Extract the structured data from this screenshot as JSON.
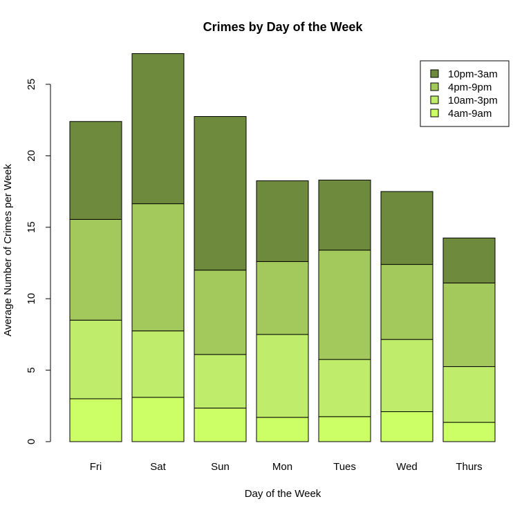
{
  "chart_data": {
    "type": "bar",
    "stacked": true,
    "title": "Crimes by Day of the Week",
    "xlabel": "Day of the Week",
    "ylabel": "Average Number of Crimes per Week",
    "ylim": [
      0,
      27.5
    ],
    "yticks": [
      0,
      5,
      10,
      15,
      20,
      25
    ],
    "categories": [
      "Fri",
      "Sat",
      "Sun",
      "Mon",
      "Tues",
      "Wed",
      "Thurs"
    ],
    "series": [
      {
        "name": "4am-9am",
        "color": "#ccff66",
        "values": [
          3.0,
          3.1,
          2.35,
          1.7,
          1.75,
          2.1,
          1.35
        ]
      },
      {
        "name": "10am-3pm",
        "color": "#bfed6b",
        "values": [
          5.5,
          4.65,
          3.75,
          5.8,
          4.0,
          5.05,
          3.9
        ]
      },
      {
        "name": "4pm-9pm",
        "color": "#a3c95c",
        "values": [
          7.05,
          8.9,
          5.9,
          5.1,
          7.65,
          5.25,
          5.85
        ]
      },
      {
        "name": "10pm-3am",
        "color": "#6e8b3d",
        "values": [
          6.85,
          10.5,
          10.75,
          5.65,
          4.9,
          5.1,
          3.15
        ]
      }
    ],
    "legend_position": "top-right",
    "legend_order": [
      "10pm-3am",
      "4pm-9pm",
      "10am-3pm",
      "4am-9am"
    ],
    "grid": false
  }
}
